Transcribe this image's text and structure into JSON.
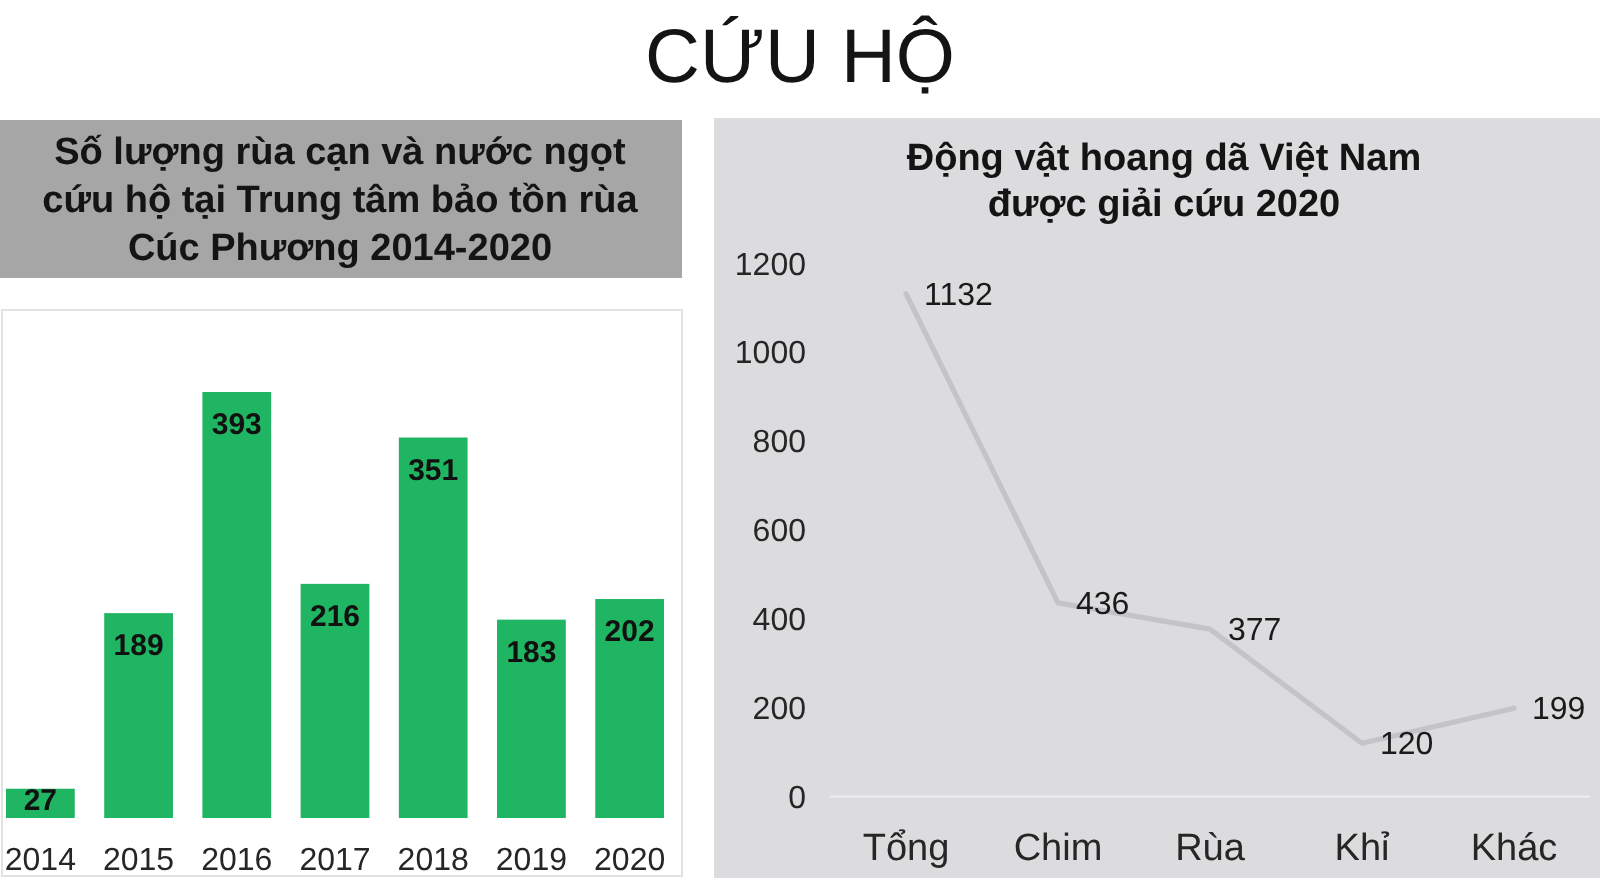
{
  "chart_data": [
    {
      "type": "other",
      "title": "CỨU HỘ"
    },
    {
      "type": "bar",
      "title": "Số lượng rùa cạn và nước ngọt\ncứu hộ tại Trung tâm bảo tồn rùa\nCúc Phương 2014-2020",
      "categories": [
        "2014",
        "2015",
        "2016",
        "2017",
        "2018",
        "2019",
        "2020"
      ],
      "values": [
        27,
        189,
        393,
        216,
        351,
        183,
        202
      ],
      "color": "#20b562",
      "data_labels": true
    },
    {
      "type": "line",
      "title": "Động vật hoang dã Việt Nam\nđược giải cứu 2020",
      "categories": [
        "Tổng",
        "Chim",
        "Rùa",
        "Khỉ",
        "Khác"
      ],
      "values": [
        1132,
        436,
        377,
        120,
        199
      ],
      "color": "#c4c4c8",
      "ylim": [
        0,
        1200
      ],
      "yticks": [
        0,
        200,
        400,
        600,
        800,
        1000,
        1200
      ],
      "data_labels": true
    }
  ]
}
